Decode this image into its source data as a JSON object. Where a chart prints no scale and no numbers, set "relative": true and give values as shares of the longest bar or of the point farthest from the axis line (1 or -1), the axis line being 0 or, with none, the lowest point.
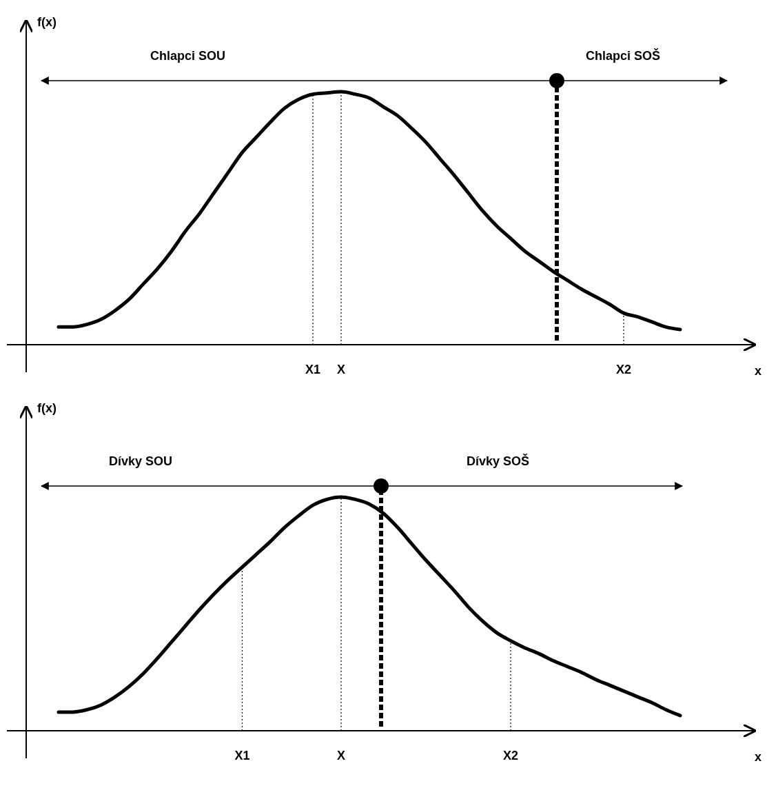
{
  "chart_data": [
    {
      "type": "line",
      "relative": true,
      "ylabel": "f(x)",
      "xlabel": "x",
      "tick_labels": "x",
      "categories": [
        null,
        null,
        null,
        null,
        null,
        null,
        null,
        null,
        null,
        null,
        null,
        null,
        null,
        null,
        null,
        null,
        null,
        null,
        "X1",
        null,
        "X",
        null,
        null,
        null,
        null,
        null,
        null,
        null,
        null,
        null,
        null,
        null,
        null,
        null,
        null,
        null,
        null,
        null,
        null,
        null,
        "X2",
        null,
        null,
        null,
        null
      ],
      "series": [
        {
          "color": "#000000",
          "line_style": "solid",
          "values": [
            0.07,
            0.07,
            0.08,
            0.1,
            0.135,
            0.18,
            0.24,
            0.3,
            0.37,
            0.45,
            0.52,
            0.6,
            0.68,
            0.76,
            0.82,
            0.88,
            0.935,
            0.97,
            0.99,
            0.995,
            1,
            0.99,
            0.975,
            0.94,
            0.905,
            0.855,
            0.8,
            0.735,
            0.67,
            0.6,
            0.53,
            0.47,
            0.42,
            0.37,
            0.33,
            0.29,
            0.255,
            0.22,
            0.19,
            0.16,
            0.125,
            0.11,
            0.09,
            0.07,
            0.06
          ]
        }
      ],
      "annotations": [
        "Chlapci SOU",
        "Chlapci SOŠ"
      ]
    },
    {
      "type": "line",
      "relative": true,
      "ylabel": "f(x)",
      "xlabel": "x",
      "tick_labels": "x",
      "categories": [
        null,
        null,
        null,
        null,
        null,
        null,
        null,
        null,
        null,
        null,
        null,
        null,
        null,
        "X1",
        null,
        null,
        null,
        null,
        null,
        null,
        "X",
        null,
        null,
        null,
        null,
        null,
        null,
        null,
        null,
        null,
        null,
        null,
        "X2",
        null,
        null,
        null,
        null,
        null,
        null,
        null,
        null,
        null,
        null,
        null,
        null
      ],
      "series": [
        {
          "color": "#000000",
          "line_style": "solid",
          "values": [
            0.08,
            0.08,
            0.09,
            0.11,
            0.145,
            0.19,
            0.245,
            0.31,
            0.38,
            0.45,
            0.52,
            0.585,
            0.645,
            0.7,
            0.755,
            0.81,
            0.87,
            0.92,
            0.965,
            0.99,
            1,
            0.99,
            0.97,
            0.93,
            0.87,
            0.8,
            0.73,
            0.665,
            0.6,
            0.53,
            0.47,
            0.42,
            0.385,
            0.355,
            0.33,
            0.3,
            0.275,
            0.25,
            0.22,
            0.195,
            0.17,
            0.145,
            0.12,
            0.09,
            0.065
          ]
        }
      ],
      "annotations": [
        "Dívky SOU",
        "Dívky SOŠ"
      ]
    }
  ]
}
